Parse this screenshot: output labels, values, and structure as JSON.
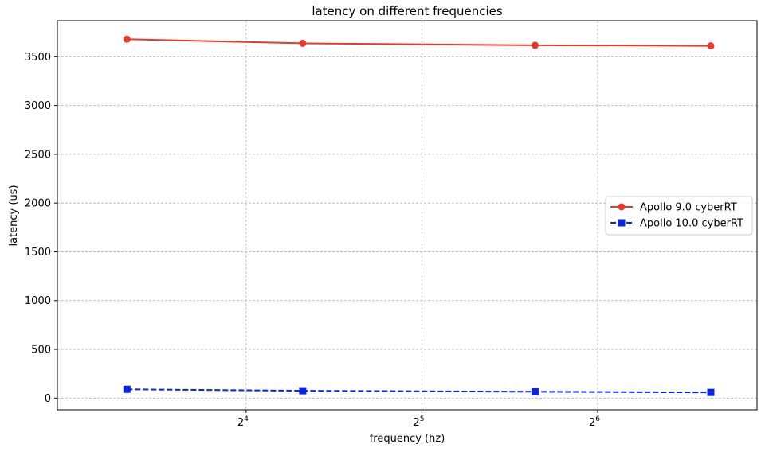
{
  "chart_data": {
    "type": "line",
    "title": "latency on different frequencies",
    "xlabel": "frequency (hz)",
    "ylabel": "latency (us)",
    "x_scale": "log2",
    "x_ticks": [
      {
        "value": 16,
        "base": "2",
        "exp": "4"
      },
      {
        "value": 32,
        "base": "2",
        "exp": "5"
      },
      {
        "value": 64,
        "base": "2",
        "exp": "6"
      }
    ],
    "y_ticks": [
      0,
      500,
      1000,
      1500,
      2000,
      2500,
      3000,
      3500
    ],
    "y_tick_labels": [
      "0",
      "500",
      "1000",
      "1500",
      "2000",
      "2500",
      "3000",
      "3500"
    ],
    "xlim": [
      7.6,
      120
    ],
    "ylim": [
      -120,
      3870
    ],
    "grid": true,
    "legend_position": "center-right",
    "x": [
      10,
      20,
      50,
      100
    ],
    "series": [
      {
        "name": "Apollo 9.0 cyberRT",
        "values": [
          3680,
          3638,
          3618,
          3612
        ],
        "color": "#e8392c",
        "linestyle": "solid",
        "marker": "circle"
      },
      {
        "name": "Apollo 10.0 cyberRT",
        "values": [
          90,
          75,
          65,
          58
        ],
        "color": "#0a24e6",
        "linestyle": "dashed",
        "marker": "square"
      }
    ]
  }
}
